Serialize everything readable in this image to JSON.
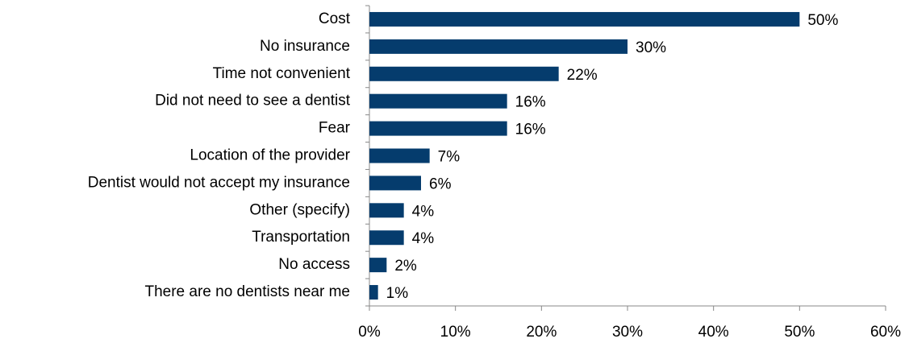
{
  "chart_data": {
    "type": "bar",
    "orientation": "horizontal",
    "categories": [
      "Cost",
      "No insurance",
      "Time not convenient",
      "Did not need to see a dentist",
      "Fear",
      "Location of the provider",
      "Dentist would not accept my insurance",
      "Other (specify)",
      "Transportation",
      "No access",
      "There are no dentists near me"
    ],
    "values": [
      50,
      30,
      22,
      16,
      16,
      7,
      6,
      4,
      4,
      2,
      1
    ],
    "value_labels": [
      "50%",
      "30%",
      "22%",
      "16%",
      "16%",
      "7%",
      "6%",
      "4%",
      "4%",
      "2%",
      "1%"
    ],
    "color": "#053c6d",
    "xlim": [
      0,
      60
    ],
    "xticks": [
      {
        "value": 0,
        "label": "0%"
      },
      {
        "value": 10,
        "label": "10%"
      },
      {
        "value": 20,
        "label": "20%"
      },
      {
        "value": 30,
        "label": "30%"
      },
      {
        "value": 40,
        "label": "40%"
      },
      {
        "value": 50,
        "label": "50%"
      },
      {
        "value": 60,
        "label": "60%"
      }
    ],
    "grid": false
  }
}
